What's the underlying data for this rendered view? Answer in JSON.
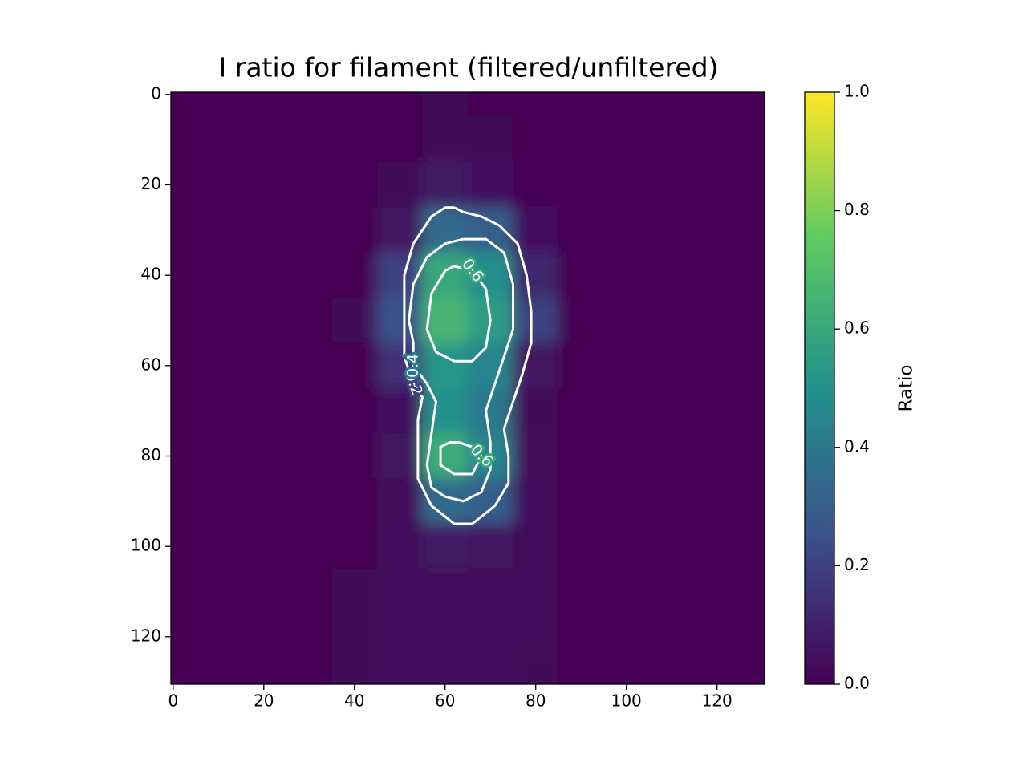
{
  "chart_data": {
    "type": "heatmap",
    "title": "I ratio for filament (filtered/unfiltered)",
    "colormap": "viridis",
    "x": [
      0,
      10,
      20,
      30,
      40,
      50,
      60,
      70,
      80,
      90,
      100,
      110,
      120,
      130
    ],
    "y": [
      0,
      10,
      20,
      30,
      40,
      50,
      60,
      70,
      80,
      90,
      100,
      110,
      120,
      130
    ],
    "z": [
      [
        0,
        0,
        0,
        0,
        0,
        0.01,
        0.02,
        0.01,
        0,
        0,
        0,
        0,
        0,
        0
      ],
      [
        0,
        0,
        0,
        0,
        0,
        0.01,
        0.02,
        0.02,
        0,
        0,
        0,
        0,
        0,
        0
      ],
      [
        0,
        0,
        0,
        0,
        0,
        0.02,
        0.08,
        0.05,
        0.01,
        0,
        0,
        0,
        0,
        0
      ],
      [
        0,
        0,
        0,
        0,
        0,
        0.06,
        0.35,
        0.3,
        0.05,
        0,
        0,
        0,
        0,
        0
      ],
      [
        0,
        0,
        0,
        0,
        0.01,
        0.2,
        0.6,
        0.5,
        0.12,
        0,
        0,
        0,
        0,
        0
      ],
      [
        0,
        0,
        0,
        0,
        0.02,
        0.25,
        0.66,
        0.55,
        0.2,
        0,
        0,
        0,
        0,
        0
      ],
      [
        0,
        0,
        0,
        0,
        0.01,
        0.15,
        0.52,
        0.45,
        0.06,
        0,
        0,
        0,
        0,
        0
      ],
      [
        0,
        0,
        0,
        0,
        0,
        0.05,
        0.5,
        0.4,
        0.02,
        0,
        0,
        0,
        0,
        0
      ],
      [
        0,
        0,
        0,
        0,
        0,
        0.06,
        0.62,
        0.45,
        0.03,
        0,
        0,
        0,
        0,
        0
      ],
      [
        0,
        0,
        0,
        0,
        0,
        0.03,
        0.35,
        0.3,
        0.03,
        0,
        0,
        0,
        0,
        0
      ],
      [
        0,
        0,
        0,
        0,
        0.01,
        0.03,
        0.08,
        0.06,
        0.03,
        0,
        0,
        0,
        0,
        0
      ],
      [
        0,
        0,
        0,
        0,
        0.02,
        0.04,
        0.04,
        0.04,
        0.03,
        0,
        0,
        0,
        0,
        0
      ],
      [
        0,
        0,
        0,
        0,
        0.02,
        0.04,
        0.05,
        0.05,
        0.03,
        0,
        0,
        0,
        0,
        0
      ],
      [
        0,
        0,
        0,
        0,
        0.02,
        0.04,
        0.05,
        0.05,
        0.02,
        0,
        0,
        0,
        0,
        0
      ]
    ],
    "contours": [
      {
        "level": 0.2,
        "x": [
          62,
          64,
          68,
          72,
          76,
          78,
          79,
          79,
          77,
          75,
          73,
          74,
          74,
          71,
          66,
          62,
          57,
          54,
          54,
          54,
          55,
          53,
          51,
          51,
          51,
          53,
          57,
          60,
          62
        ],
        "y": [
          25,
          26,
          27,
          29,
          33,
          40,
          48,
          55,
          62,
          68,
          74,
          80,
          86,
          91,
          95,
          95,
          91,
          85,
          78,
          72,
          67,
          64,
          58,
          50,
          40,
          33,
          27,
          25,
          25
        ]
      },
      {
        "level": 0.4,
        "x": [
          64,
          69,
          73,
          75,
          75,
          73,
          71,
          69,
          70,
          70,
          68,
          64,
          60,
          57,
          56,
          57,
          58,
          56,
          53,
          53,
          52,
          53,
          56,
          60,
          64
        ],
        "y": [
          32,
          32,
          35,
          42,
          52,
          58,
          64,
          70,
          77,
          83,
          88,
          90,
          89,
          87,
          82,
          75,
          68,
          64,
          60,
          55,
          50,
          42,
          36,
          33,
          32
        ]
      },
      {
        "level": 0.6,
        "x": [
          62,
          66,
          69,
          70,
          69,
          66,
          62,
          58,
          56,
          57,
          60,
          62
        ],
        "y": [
          38,
          39,
          43,
          50,
          56,
          59,
          59,
          57,
          52,
          44,
          39,
          38
        ]
      },
      {
        "level": 0.6,
        "x": [
          63,
          61,
          59,
          59,
          62,
          66,
          67,
          68,
          66,
          63
        ],
        "y": [
          77,
          77,
          78,
          82,
          84,
          84,
          82,
          80,
          78,
          77
        ]
      }
    ],
    "xlim": [
      -0.5,
      130.5
    ],
    "ylim": [
      130.5,
      -0.5
    ],
    "xticks": [
      0,
      20,
      40,
      60,
      80,
      100,
      120
    ],
    "yticks": [
      0,
      20,
      40,
      60,
      80,
      100,
      120
    ],
    "clim": [
      0,
      1
    ],
    "cbar_ticks": [
      {
        "value": 0,
        "label": "0.0"
      },
      0.2,
      0.4,
      0.6,
      0.8,
      {
        "value": 1,
        "label": "1.0"
      }
    ],
    "cbar_label": "Ratio"
  }
}
